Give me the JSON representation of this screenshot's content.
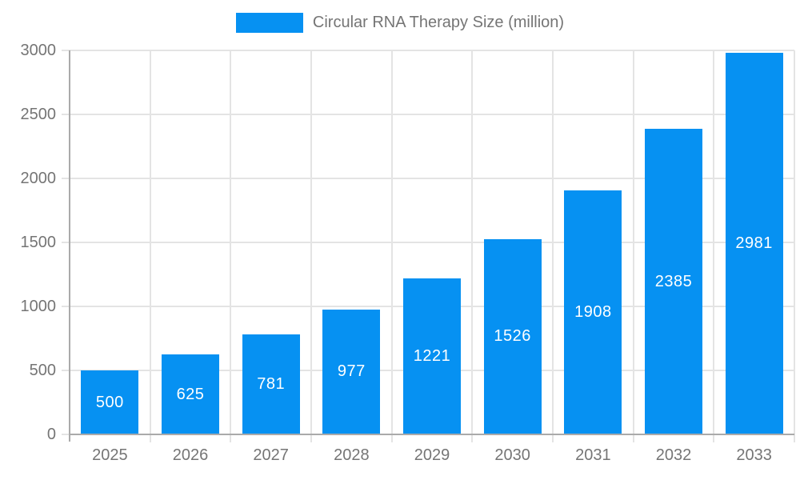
{
  "chart_data": {
    "type": "bar",
    "title": "Circular RNA Therapy Size (million)",
    "legend_label": "Circular RNA Therapy Size (million)",
    "legend_position": "top",
    "categories": [
      "2025",
      "2026",
      "2027",
      "2028",
      "2029",
      "2030",
      "2031",
      "2032",
      "2033"
    ],
    "values": [
      500,
      625,
      781,
      977,
      1221,
      1526,
      1908,
      2385,
      2981
    ],
    "yticks": [
      0,
      500,
      1000,
      1500,
      2000,
      2500,
      3000
    ],
    "ylim": [
      0,
      3000
    ],
    "xlabel": "",
    "ylabel": "",
    "grid": true,
    "value_labels_shown": true,
    "colors": {
      "bar": "#0691f2",
      "value_label": "#ffffff",
      "axis_text": "#757575",
      "grid_line": "#e4e4e4",
      "axis_line": "#aaaaaa"
    }
  }
}
